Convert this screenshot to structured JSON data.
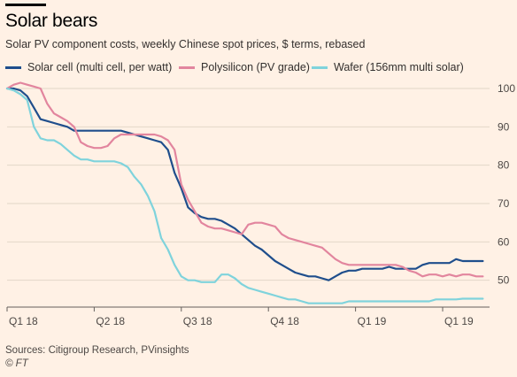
{
  "header": {
    "title": "Solar bears",
    "subtitle": "Solar PV component costs, weekly Chinese spot prices, $ terms, rebased"
  },
  "footer": {
    "source": "Sources: Citigroup Research, PVinsights",
    "copyright": "© FT"
  },
  "colors": {
    "background": "#fff1e5",
    "gridline": "#e2d6c8",
    "axis": "#66605c",
    "solar_cell": "#1f4e8c",
    "polysilicon": "#e2859e",
    "wafer": "#7fd3dc"
  },
  "chart_data": {
    "type": "line",
    "title": "Solar bears",
    "subtitle": "Solar PV component costs, weekly Chinese spot prices, $ terms, rebased",
    "xlabel": "",
    "ylabel": "",
    "x_unit": "week",
    "x_range": [
      0,
      72
    ],
    "ylim": [
      43,
      100
    ],
    "y_ticks": [
      50,
      60,
      70,
      80,
      90,
      100
    ],
    "x_ticks": [
      {
        "label": "Q1 18",
        "x": 0
      },
      {
        "label": "Q2 18",
        "x": 13
      },
      {
        "label": "Q3 18",
        "x": 26
      },
      {
        "label": "Q4 18",
        "x": 39
      },
      {
        "label": "Q1 19",
        "x": 52
      },
      {
        "label": "Q1 19",
        "x": 65
      }
    ],
    "grid": true,
    "legend_position": "top",
    "series": [
      {
        "name": "Solar cell (multi cell, per watt)",
        "color": "#1f4e8c",
        "x": [
          0,
          1,
          2,
          3,
          4,
          5,
          6,
          7,
          8,
          9,
          10,
          11,
          12,
          13,
          14,
          15,
          16,
          17,
          18,
          19,
          20,
          21,
          22,
          23,
          24,
          25,
          26,
          27,
          28,
          29,
          30,
          31,
          32,
          33,
          34,
          35,
          36,
          37,
          38,
          39,
          40,
          41,
          42,
          43,
          44,
          45,
          46,
          47,
          48,
          49,
          50,
          51,
          52,
          53,
          54,
          55,
          56,
          57,
          58,
          59,
          60,
          61,
          62,
          63,
          64,
          65,
          66,
          67,
          68,
          69,
          70,
          71
        ],
        "values": [
          100,
          100,
          99.5,
          98,
          95,
          92,
          91.5,
          91,
          90.5,
          90,
          89,
          89,
          89,
          89,
          89,
          89,
          89,
          89,
          88.5,
          88,
          87.5,
          87,
          86.5,
          86,
          84,
          78,
          74,
          69,
          67.5,
          66.5,
          66,
          66,
          65.5,
          64.5,
          63.5,
          62,
          60.5,
          59,
          58,
          56.5,
          55,
          54,
          53,
          52,
          51.5,
          51,
          51,
          50.5,
          50,
          51,
          52,
          52.5,
          52.5,
          53,
          53,
          53,
          53,
          53.5,
          53,
          53,
          53,
          53,
          54,
          54.5,
          54.5,
          54.5,
          54.5,
          55.5,
          55,
          55,
          55,
          55
        ]
      },
      {
        "name": "Polysilicon (PV grade)",
        "color": "#e2859e",
        "x": [
          0,
          1,
          2,
          3,
          4,
          5,
          6,
          7,
          8,
          9,
          10,
          11,
          12,
          13,
          14,
          15,
          16,
          17,
          18,
          19,
          20,
          21,
          22,
          23,
          24,
          25,
          26,
          27,
          28,
          29,
          30,
          31,
          32,
          33,
          34,
          35,
          36,
          37,
          38,
          39,
          40,
          41,
          42,
          43,
          44,
          45,
          46,
          47,
          48,
          49,
          50,
          51,
          52,
          53,
          54,
          55,
          56,
          57,
          58,
          59,
          60,
          61,
          62,
          63,
          64,
          65,
          66,
          67,
          68,
          69,
          70,
          71
        ],
        "values": [
          100,
          101,
          101.5,
          101,
          100.5,
          100,
          96,
          93.5,
          92.5,
          91.5,
          90,
          86,
          85,
          84.5,
          84.5,
          85,
          87,
          88,
          88,
          88,
          88,
          88,
          88,
          87.5,
          86.5,
          84,
          75,
          71,
          68,
          65,
          64,
          63.5,
          63.5,
          63,
          62.5,
          62,
          64.5,
          65,
          65,
          64.5,
          64,
          62,
          61,
          60.5,
          60,
          59.5,
          59,
          58.5,
          57,
          55.5,
          54.5,
          54,
          54,
          54,
          54,
          54,
          54,
          54,
          54,
          53.5,
          52.5,
          52,
          51,
          51.5,
          51.5,
          51,
          51.5,
          51,
          51.5,
          51.5,
          51,
          51
        ]
      },
      {
        "name": "Wafer (156mm multi solar)",
        "color": "#7fd3dc",
        "x": [
          0,
          1,
          2,
          3,
          4,
          5,
          6,
          7,
          8,
          9,
          10,
          11,
          12,
          13,
          14,
          15,
          16,
          17,
          18,
          19,
          20,
          21,
          22,
          23,
          24,
          25,
          26,
          27,
          28,
          29,
          30,
          31,
          32,
          33,
          34,
          35,
          36,
          37,
          38,
          39,
          40,
          41,
          42,
          43,
          44,
          45,
          46,
          47,
          48,
          49,
          50,
          51,
          52,
          53,
          54,
          55,
          56,
          57,
          58,
          59,
          60,
          61,
          62,
          63,
          64,
          65,
          66,
          67,
          68,
          69,
          70,
          71
        ],
        "values": [
          100,
          99.5,
          98.5,
          97,
          90,
          87,
          86.5,
          86.5,
          85.5,
          84,
          82.5,
          81.5,
          81.5,
          81,
          81,
          81,
          81,
          80.5,
          79.5,
          77,
          75,
          72,
          68,
          61,
          58,
          54,
          51,
          50,
          50,
          49.5,
          49.5,
          49.5,
          51.5,
          51.5,
          50.5,
          49,
          48,
          47.5,
          47,
          46.5,
          46,
          45.5,
          45,
          45,
          44.5,
          44,
          44,
          44,
          44,
          44,
          44,
          44.5,
          44.5,
          44.5,
          44.5,
          44.5,
          44.5,
          44.5,
          44.5,
          44.5,
          44.5,
          44.5,
          44.5,
          44.5,
          45,
          45,
          45,
          45,
          45.2,
          45.2,
          45.2,
          45.2
        ]
      }
    ]
  }
}
